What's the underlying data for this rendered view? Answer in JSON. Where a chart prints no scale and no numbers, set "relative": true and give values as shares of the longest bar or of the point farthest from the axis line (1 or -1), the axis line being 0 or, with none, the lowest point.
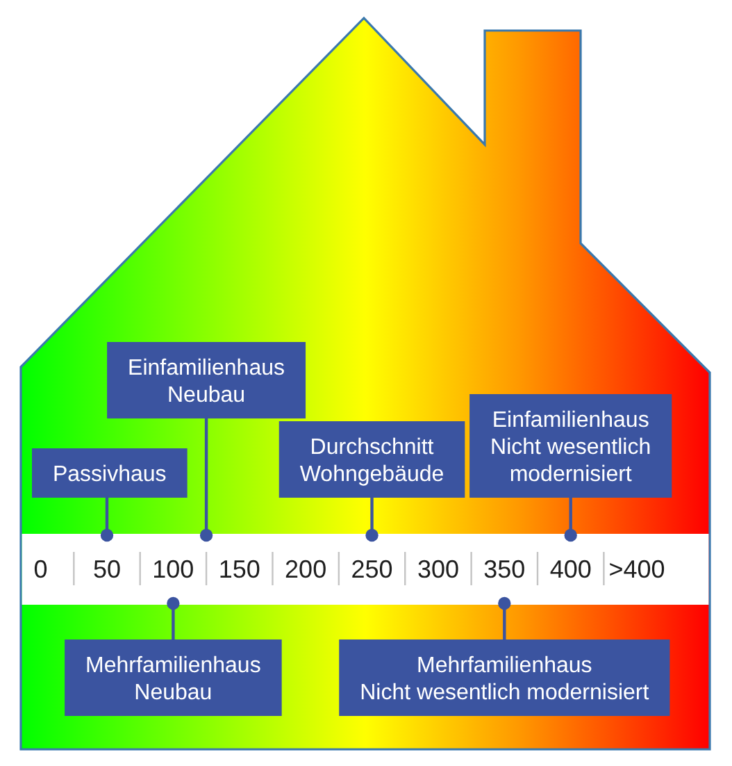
{
  "chart_data": {
    "type": "scatter",
    "relative": true,
    "x": [
      50,
      125,
      250,
      400,
      100,
      350
    ],
    "values": [
      1,
      1,
      1,
      1,
      0,
      0
    ],
    "color": "#3b54a0",
    "marker": "circle",
    "xlim": [
      -15,
      505
    ],
    "xticks": [
      0,
      50,
      100,
      150,
      200,
      250,
      300,
      350,
      400,
      {
        "value": 450,
        "label": ">400"
      }
    ],
    "annotations": [
      {
        "text": "Passivhaus",
        "x": 50,
        "y": 1
      },
      {
        "text": "Einfamilienhaus\nNeubau",
        "x": 125,
        "y": 1
      },
      {
        "text": "Durchschnitt\nWohngebäude",
        "x": 250,
        "y": 1
      },
      {
        "text": "Einfamilienhaus\nNicht wesentlich\nmodernisiert",
        "x": 400,
        "y": 1
      },
      {
        "text": "Mehrfamilienhaus\nNeubau",
        "x": 100,
        "y": 0
      },
      {
        "text": "Mehrfamilienhaus\nNicht wesentlich modernisiert",
        "x": 350,
        "y": 0
      }
    ]
  }
}
